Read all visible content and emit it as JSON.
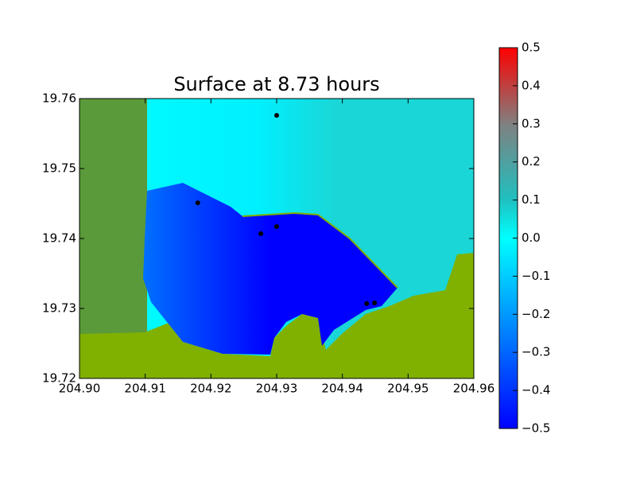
{
  "chart_data": {
    "type": "scatter",
    "title": "Surface at 8.73 hours",
    "xlim": [
      204.9,
      204.96
    ],
    "xticks": [
      {
        "value": 204.9,
        "label": "204.90"
      },
      204.91,
      204.92,
      204.93,
      204.94,
      204.95,
      204.96
    ],
    "ylim": [
      19.72,
      19.76
    ],
    "yticks": [
      19.72,
      19.73,
      19.74,
      19.75,
      19.76
    ],
    "x": [
      204.93,
      204.918,
      204.9276,
      204.93,
      204.9437,
      204.9449
    ],
    "values": [
      19.7576,
      19.7451,
      19.7407,
      19.7417,
      19.7307,
      19.7308
    ],
    "color": "#000000",
    "colorbar": {
      "lim": [
        -0.5,
        0.5
      ],
      "ticks": [
        0.5,
        0.4,
        0.3,
        0.2,
        0.1,
        {
          "value": 0,
          "label": "0.0"
        },
        {
          "value": -0.1,
          "label": "−0.1"
        },
        {
          "value": -0.2,
          "label": "−0.2"
        },
        {
          "value": -0.3,
          "label": "−0.3"
        },
        {
          "value": -0.4,
          "label": "−0.4"
        },
        {
          "value": -0.5,
          "label": "−0.5"
        }
      ]
    }
  }
}
